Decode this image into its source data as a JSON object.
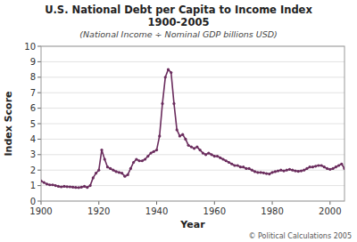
{
  "chart_data": {
    "type": "line",
    "title": [
      "U.S. National Debt per Capita to Income Index",
      "1900-2005"
    ],
    "subtitle": "(National Income ÷ Nominal GDP billions USD)",
    "x_label": "Year",
    "y_label": "Index Score",
    "annotations": [
      "© Political Calculations 2005"
    ],
    "color": "#6b2d5e",
    "marker": "circle",
    "grid": true,
    "xlim": [
      1900,
      2005
    ],
    "ylim": [
      0,
      10
    ],
    "xticks": [
      1900,
      1920,
      1940,
      1960,
      1980,
      2000
    ],
    "yticks": [
      0,
      1,
      2,
      3,
      4,
      5,
      6,
      7,
      8,
      9,
      10
    ],
    "x": [
      1900,
      1901,
      1902,
      1903,
      1904,
      1905,
      1906,
      1907,
      1908,
      1909,
      1910,
      1911,
      1912,
      1913,
      1914,
      1915,
      1916,
      1917,
      1918,
      1919,
      1920,
      1921,
      1922,
      1923,
      1924,
      1925,
      1926,
      1927,
      1928,
      1929,
      1930,
      1931,
      1932,
      1933,
      1934,
      1935,
      1936,
      1937,
      1938,
      1939,
      1940,
      1941,
      1942,
      1943,
      1944,
      1945,
      1946,
      1947,
      1948,
      1949,
      1950,
      1951,
      1952,
      1953,
      1954,
      1955,
      1956,
      1957,
      1958,
      1959,
      1960,
      1961,
      1962,
      1963,
      1964,
      1965,
      1966,
      1967,
      1968,
      1969,
      1970,
      1971,
      1972,
      1973,
      1974,
      1975,
      1976,
      1977,
      1978,
      1979,
      1980,
      1981,
      1982,
      1983,
      1984,
      1985,
      1986,
      1987,
      1988,
      1989,
      1990,
      1991,
      1992,
      1993,
      1994,
      1995,
      1996,
      1997,
      1998,
      1999,
      2000,
      2001,
      2002,
      2003,
      2004,
      2005
    ],
    "values": [
      1.3,
      1.2,
      1.1,
      1.05,
      1.05,
      1.0,
      0.95,
      0.92,
      0.95,
      0.93,
      0.92,
      0.9,
      0.88,
      0.87,
      0.9,
      0.95,
      0.88,
      1.0,
      1.5,
      1.8,
      2.0,
      3.3,
      2.7,
      2.2,
      2.1,
      2.0,
      1.9,
      1.85,
      1.8,
      1.6,
      1.7,
      2.1,
      2.5,
      2.7,
      2.6,
      2.6,
      2.7,
      2.9,
      3.1,
      3.2,
      3.3,
      4.2,
      6.3,
      8.0,
      8.5,
      8.3,
      6.3,
      4.6,
      4.2,
      4.3,
      4.0,
      3.6,
      3.5,
      3.4,
      3.5,
      3.3,
      3.1,
      3.0,
      3.1,
      3.0,
      2.9,
      2.9,
      2.8,
      2.7,
      2.6,
      2.5,
      2.4,
      2.3,
      2.3,
      2.2,
      2.2,
      2.1,
      2.1,
      2.0,
      1.9,
      1.85,
      1.85,
      1.82,
      1.78,
      1.75,
      1.85,
      1.9,
      1.95,
      2.0,
      1.95,
      2.0,
      2.05,
      2.0,
      1.95,
      1.92,
      1.95,
      2.0,
      2.1,
      2.2,
      2.2,
      2.25,
      2.3,
      2.3,
      2.2,
      2.1,
      2.05,
      2.1,
      2.2,
      2.3,
      2.4,
      2.1
    ]
  }
}
